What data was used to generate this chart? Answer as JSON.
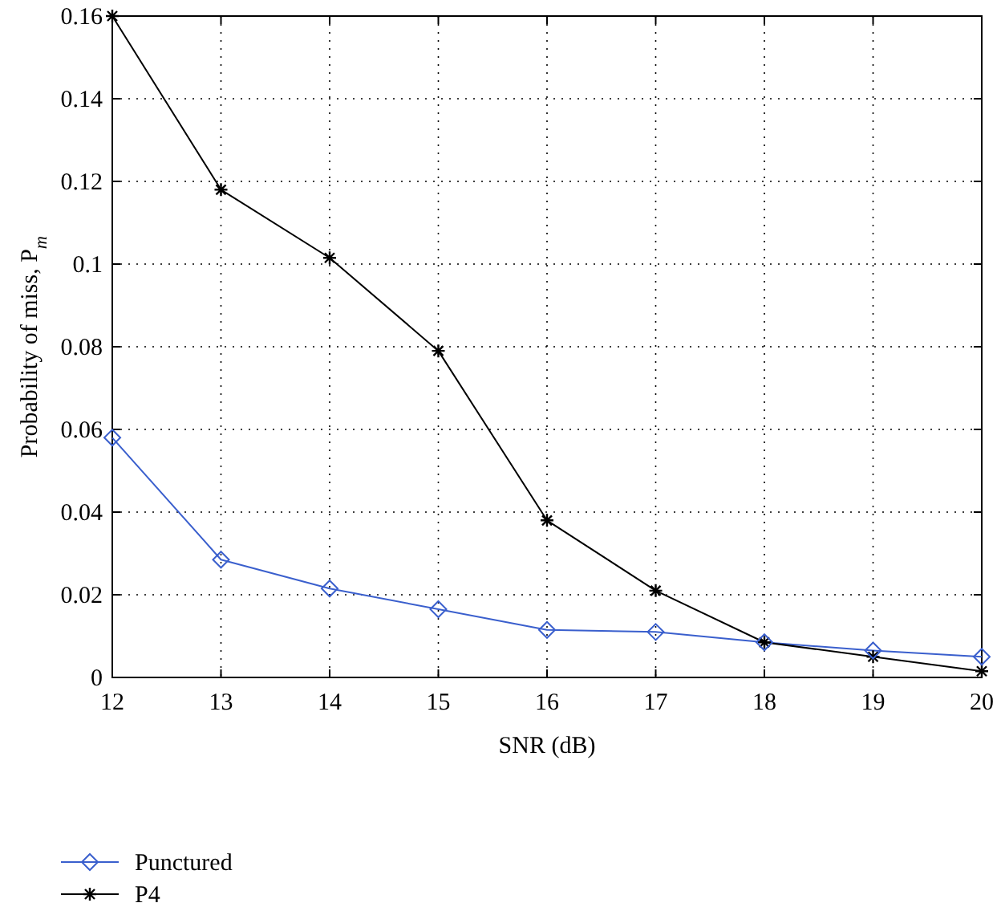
{
  "chart_data": {
    "type": "line",
    "xlabel": "SNR (dB)",
    "ylabel": "Probability of miss, P$_{m}$",
    "x": [
      12,
      13,
      14,
      15,
      16,
      17,
      18,
      19,
      20
    ],
    "series": [
      {
        "name": "Punctured",
        "color": "#3a5fcd",
        "marker": "diamond",
        "values": [
          0.058,
          0.0285,
          0.0215,
          0.0165,
          0.0115,
          0.011,
          0.0085,
          0.0065,
          0.005
        ]
      },
      {
        "name": "P4",
        "color": "#000000",
        "marker": "cross",
        "values": [
          0.16,
          0.118,
          0.1015,
          0.079,
          0.038,
          0.021,
          0.0085,
          0.005,
          0.0015
        ]
      }
    ],
    "xlim": [
      12,
      20
    ],
    "xticks": [
      12,
      13,
      14,
      15,
      16,
      17,
      18,
      19,
      20
    ],
    "ylim": [
      0,
      0.16
    ],
    "yticks": [
      0,
      0.02,
      0.04,
      0.06,
      0.08,
      0.1,
      0.12,
      0.14,
      0.16
    ],
    "grid": true,
    "legend": "bottom left",
    "line_style": "solid"
  }
}
